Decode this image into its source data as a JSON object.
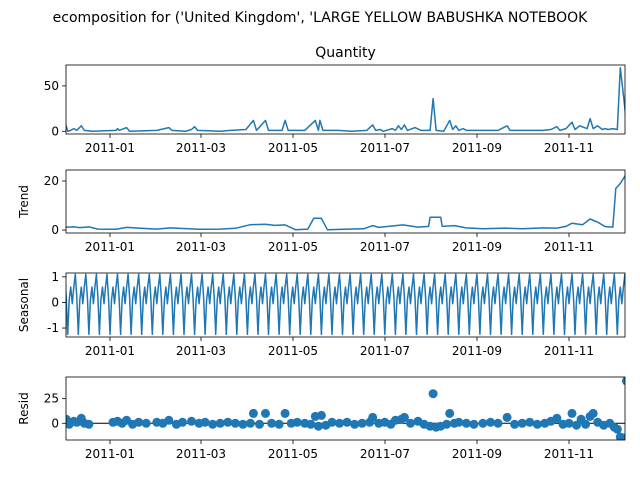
{
  "figure": {
    "suptitle": "ecomposition for ('United Kingdom', 'LARGE YELLOW BABUSHKA NOTEBOOK"
  },
  "colors": {
    "series": "#1f77b4",
    "axes": "#000000",
    "zero_line": "#000000"
  },
  "chart_data": [
    {
      "type": "line",
      "title": "Quantity",
      "ylabel": "",
      "xlim": [
        "2011-11-30",
        "2011-12-09"
      ],
      "ylim": [
        -3,
        73
      ],
      "yticks": [
        0,
        50
      ],
      "xticks": [
        "2011-01",
        "2011-03",
        "2011-05",
        "2011-07",
        "2011-09",
        "2011-11"
      ],
      "series": [
        {
          "points": [
            [
              "2010-12-01",
              1
            ],
            [
              "2010-12-02",
              0
            ],
            [
              "2010-12-03",
              6
            ],
            [
              "2010-12-04",
              0
            ],
            [
              "2010-12-06",
              1
            ],
            [
              "2010-12-08",
              3
            ],
            [
              "2010-12-10",
              1
            ],
            [
              "2010-12-13",
              6
            ],
            [
              "2010-12-15",
              1
            ],
            [
              "2010-12-20",
              0
            ],
            [
              "2011-01-05",
              1
            ],
            [
              "2011-01-06",
              3
            ],
            [
              "2011-01-07",
              1
            ],
            [
              "2011-01-12",
              4
            ],
            [
              "2011-01-14",
              0
            ],
            [
              "2011-02-01",
              1
            ],
            [
              "2011-02-09",
              4
            ],
            [
              "2011-02-11",
              1
            ],
            [
              "2011-02-20",
              0
            ],
            [
              "2011-02-24",
              2
            ],
            [
              "2011-02-26",
              5
            ],
            [
              "2011-02-28",
              1
            ],
            [
              "2011-03-15",
              0
            ],
            [
              "2011-03-22",
              1
            ],
            [
              "2011-04-01",
              2
            ],
            [
              "2011-04-06",
              12
            ],
            [
              "2011-04-08",
              1
            ],
            [
              "2011-04-14",
              12
            ],
            [
              "2011-04-16",
              1
            ],
            [
              "2011-04-25",
              1
            ],
            [
              "2011-04-27",
              12
            ],
            [
              "2011-04-29",
              1
            ],
            [
              "2011-05-10",
              1
            ],
            [
              "2011-05-17",
              12
            ],
            [
              "2011-05-19",
              1
            ],
            [
              "2011-05-20",
              12
            ],
            [
              "2011-05-22",
              1
            ],
            [
              "2011-06-01",
              1
            ],
            [
              "2011-06-10",
              0
            ],
            [
              "2011-06-20",
              1
            ],
            [
              "2011-06-24",
              7
            ],
            [
              "2011-06-26",
              1
            ],
            [
              "2011-06-29",
              2
            ],
            [
              "2011-07-01",
              0
            ],
            [
              "2011-07-07",
              3
            ],
            [
              "2011-07-09",
              1
            ],
            [
              "2011-07-11",
              6
            ],
            [
              "2011-07-13",
              2
            ],
            [
              "2011-07-15",
              7
            ],
            [
              "2011-07-17",
              1
            ],
            [
              "2011-07-22",
              4
            ],
            [
              "2011-07-26",
              1
            ],
            [
              "2011-08-01",
              1
            ],
            [
              "2011-08-03",
              36
            ],
            [
              "2011-08-05",
              1
            ],
            [
              "2011-08-10",
              0
            ],
            [
              "2011-08-14",
              12
            ],
            [
              "2011-08-16",
              2
            ],
            [
              "2011-08-18",
              6
            ],
            [
              "2011-08-20",
              1
            ],
            [
              "2011-08-23",
              3
            ],
            [
              "2011-08-25",
              1
            ],
            [
              "2011-09-05",
              1
            ],
            [
              "2011-09-15",
              1
            ],
            [
              "2011-09-21",
              6
            ],
            [
              "2011-09-23",
              1
            ],
            [
              "2011-10-05",
              1
            ],
            [
              "2011-10-15",
              1
            ],
            [
              "2011-10-20",
              2
            ],
            [
              "2011-10-24",
              5
            ],
            [
              "2011-10-26",
              1
            ],
            [
              "2011-10-30",
              3
            ],
            [
              "2011-11-03",
              10
            ],
            [
              "2011-11-05",
              2
            ],
            [
              "2011-11-08",
              6
            ],
            [
              "2011-11-13",
              3
            ],
            [
              "2011-11-15",
              14
            ],
            [
              "2011-11-17",
              3
            ],
            [
              "2011-11-20",
              6
            ],
            [
              "2011-11-23",
              2
            ],
            [
              "2011-11-25",
              3
            ],
            [
              "2011-11-27",
              2
            ],
            [
              "2011-11-30",
              3
            ],
            [
              "2011-12-03",
              2
            ],
            [
              "2011-12-05",
              70
            ],
            [
              "2011-12-07",
              40
            ],
            [
              "2011-12-09",
              10
            ]
          ]
        }
      ]
    },
    {
      "type": "line",
      "title": "",
      "ylabel": "Trend",
      "xlim": [
        "2011-11-30",
        "2011-12-09"
      ],
      "ylim": [
        -1.2,
        24.5
      ],
      "yticks": [
        0,
        20
      ],
      "xticks": [
        "2011-01",
        "2011-03",
        "2011-05",
        "2011-07",
        "2011-09",
        "2011-11"
      ],
      "series": [
        {
          "points": [
            [
              "2010-12-01",
              1
            ],
            [
              "2010-12-04",
              1.2
            ],
            [
              "2010-12-08",
              1.3
            ],
            [
              "2010-12-12",
              1
            ],
            [
              "2010-12-18",
              1.3
            ],
            [
              "2010-12-24",
              0.4
            ],
            [
              "2011-01-05",
              0.3
            ],
            [
              "2011-01-12",
              1.1
            ],
            [
              "2011-01-20",
              0.8
            ],
            [
              "2011-02-01",
              0.4
            ],
            [
              "2011-02-10",
              0.9
            ],
            [
              "2011-02-20",
              0.6
            ],
            [
              "2011-03-01",
              0.3
            ],
            [
              "2011-03-15",
              0.4
            ],
            [
              "2011-03-25",
              0.7
            ],
            [
              "2011-04-04",
              2.2
            ],
            [
              "2011-04-14",
              2.4
            ],
            [
              "2011-04-20",
              1.9
            ],
            [
              "2011-04-27",
              2.1
            ],
            [
              "2011-05-04",
              0.1
            ],
            [
              "2011-05-12",
              0.4
            ],
            [
              "2011-05-16",
              4.8
            ],
            [
              "2011-05-21",
              4.8
            ],
            [
              "2011-05-25",
              0.1
            ],
            [
              "2011-06-05",
              0.3
            ],
            [
              "2011-06-18",
              0.5
            ],
            [
              "2011-06-24",
              1.8
            ],
            [
              "2011-06-28",
              1.1
            ],
            [
              "2011-07-06",
              1.6
            ],
            [
              "2011-07-14",
              2.1
            ],
            [
              "2011-07-24",
              1.2
            ],
            [
              "2011-07-31",
              1.5
            ],
            [
              "2011-08-01",
              5.2
            ],
            [
              "2011-08-08",
              5.2
            ],
            [
              "2011-08-09",
              1.5
            ],
            [
              "2011-08-17",
              1.8
            ],
            [
              "2011-08-25",
              0.9
            ],
            [
              "2011-09-05",
              0.5
            ],
            [
              "2011-09-20",
              0.8
            ],
            [
              "2011-10-01",
              0.5
            ],
            [
              "2011-10-15",
              0.9
            ],
            [
              "2011-10-24",
              0.8
            ],
            [
              "2011-10-30",
              1.5
            ],
            [
              "2011-11-03",
              2.8
            ],
            [
              "2011-11-10",
              2.2
            ],
            [
              "2011-11-15",
              4.5
            ],
            [
              "2011-11-20",
              3.2
            ],
            [
              "2011-11-25",
              1.4
            ],
            [
              "2011-11-30",
              1.2
            ],
            [
              "2011-12-02",
              17
            ],
            [
              "2011-12-05",
              19
            ],
            [
              "2011-12-09",
              23
            ]
          ]
        }
      ]
    },
    {
      "type": "line",
      "title": "",
      "ylabel": "Seasonal",
      "xlim": [
        "2011-11-30",
        "2011-12-09"
      ],
      "ylim": [
        -1.35,
        1.15
      ],
      "yticks": [
        -1,
        0,
        1
      ],
      "xticks": [
        "2011-01",
        "2011-03",
        "2011-05",
        "2011-07",
        "2011-09",
        "2011-11"
      ],
      "period_days": 7,
      "weekly_pattern": [
        0.6,
        1.1,
        0.2,
        -1.25,
        0.1,
        0.6,
        -0.05
      ],
      "series": [
        {
          "start": "2010-12-01",
          "end": "2011-12-09"
        }
      ]
    },
    {
      "type": "scatter",
      "title": "",
      "ylabel": "Resid",
      "xlim": [
        "2011-11-30",
        "2011-12-09"
      ],
      "ylim": [
        -17,
        47
      ],
      "yticks": [
        0,
        25
      ],
      "xticks": [
        "2011-01",
        "2011-03",
        "2011-05",
        "2011-07",
        "2011-09",
        "2011-11"
      ],
      "hline": 0,
      "series": [
        {
          "points": [
            [
              "2010-12-01",
              0
            ],
            [
              "2010-12-03",
              4
            ],
            [
              "2010-12-05",
              -1
            ],
            [
              "2010-12-08",
              2
            ],
            [
              "2010-12-10",
              1
            ],
            [
              "2010-12-13",
              5
            ],
            [
              "2010-12-15",
              0
            ],
            [
              "2010-12-18",
              -1
            ],
            [
              "2011-01-03",
              1
            ],
            [
              "2011-01-06",
              2
            ],
            [
              "2011-01-09",
              0
            ],
            [
              "2011-01-12",
              3
            ],
            [
              "2011-01-16",
              -1
            ],
            [
              "2011-01-20",
              1
            ],
            [
              "2011-01-25",
              0
            ],
            [
              "2011-02-01",
              1
            ],
            [
              "2011-02-05",
              0
            ],
            [
              "2011-02-09",
              3
            ],
            [
              "2011-02-14",
              -1
            ],
            [
              "2011-02-18",
              1
            ],
            [
              "2011-02-24",
              2
            ],
            [
              "2011-03-01",
              0
            ],
            [
              "2011-03-05",
              1
            ],
            [
              "2011-03-10",
              -1
            ],
            [
              "2011-03-15",
              0
            ],
            [
              "2011-03-20",
              1
            ],
            [
              "2011-03-25",
              0
            ],
            [
              "2011-03-30",
              -1
            ],
            [
              "2011-04-04",
              0
            ],
            [
              "2011-04-06",
              10
            ],
            [
              "2011-04-10",
              -1
            ],
            [
              "2011-04-14",
              10
            ],
            [
              "2011-04-18",
              0
            ],
            [
              "2011-04-23",
              -1
            ],
            [
              "2011-04-27",
              10
            ],
            [
              "2011-05-01",
              0
            ],
            [
              "2011-05-05",
              1
            ],
            [
              "2011-05-10",
              0
            ],
            [
              "2011-05-14",
              -1
            ],
            [
              "2011-05-17",
              7
            ],
            [
              "2011-05-19",
              -3
            ],
            [
              "2011-05-21",
              8
            ],
            [
              "2011-05-24",
              -2
            ],
            [
              "2011-05-28",
              1
            ],
            [
              "2011-06-02",
              0
            ],
            [
              "2011-06-07",
              1
            ],
            [
              "2011-06-12",
              -1
            ],
            [
              "2011-06-17",
              0
            ],
            [
              "2011-06-22",
              1
            ],
            [
              "2011-06-24",
              6
            ],
            [
              "2011-06-28",
              0
            ],
            [
              "2011-07-02",
              1
            ],
            [
              "2011-07-06",
              -1
            ],
            [
              "2011-07-09",
              3
            ],
            [
              "2011-07-13",
              4
            ],
            [
              "2011-07-15",
              6
            ],
            [
              "2011-07-19",
              0
            ],
            [
              "2011-07-24",
              2
            ],
            [
              "2011-07-28",
              -1
            ],
            [
              "2011-08-01",
              -3
            ],
            [
              "2011-08-03",
              30
            ],
            [
              "2011-08-05",
              -4
            ],
            [
              "2011-08-08",
              -3
            ],
            [
              "2011-08-12",
              -1
            ],
            [
              "2011-08-14",
              10
            ],
            [
              "2011-08-17",
              0
            ],
            [
              "2011-08-20",
              1
            ],
            [
              "2011-08-25",
              0
            ],
            [
              "2011-08-30",
              -1
            ],
            [
              "2011-09-05",
              0
            ],
            [
              "2011-09-10",
              1
            ],
            [
              "2011-09-15",
              0
            ],
            [
              "2011-09-21",
              6
            ],
            [
              "2011-09-26",
              -1
            ],
            [
              "2011-10-01",
              0
            ],
            [
              "2011-10-06",
              1
            ],
            [
              "2011-10-11",
              -1
            ],
            [
              "2011-10-16",
              0
            ],
            [
              "2011-10-20",
              2
            ],
            [
              "2011-10-24",
              5
            ],
            [
              "2011-10-28",
              -1
            ],
            [
              "2011-11-01",
              0
            ],
            [
              "2011-11-03",
              10
            ],
            [
              "2011-11-06",
              -2
            ],
            [
              "2011-11-09",
              4
            ],
            [
              "2011-11-12",
              -1
            ],
            [
              "2011-11-15",
              7
            ],
            [
              "2011-11-17",
              10
            ],
            [
              "2011-11-20",
              1
            ],
            [
              "2011-11-24",
              -2
            ],
            [
              "2011-11-28",
              0
            ],
            [
              "2011-12-01",
              -4
            ],
            [
              "2011-12-03",
              -6
            ],
            [
              "2011-12-05",
              -14
            ],
            [
              "2011-12-07",
              -15
            ],
            [
              "2011-12-09",
              43
            ]
          ]
        }
      ]
    }
  ]
}
